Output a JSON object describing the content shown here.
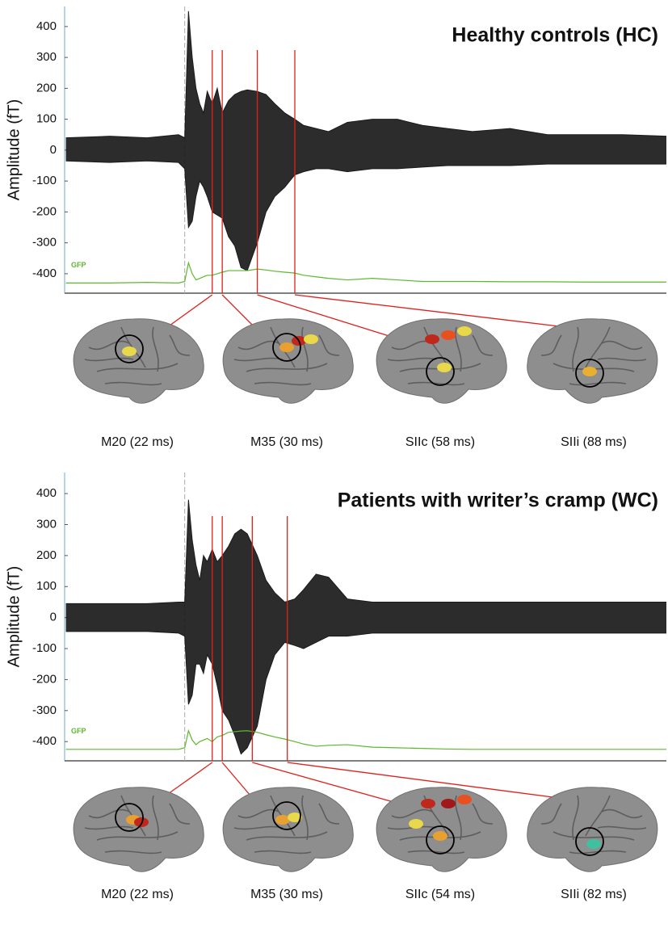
{
  "chart_data": [
    {
      "type": "line",
      "title": "Healthy controls (HC)",
      "y_label": "Amplitude (fT)",
      "x": [
        -95,
        -60,
        -30,
        -5,
        0,
        3,
        6,
        9,
        12,
        15,
        18,
        22,
        26,
        30,
        35,
        40,
        45,
        50,
        58,
        65,
        72,
        80,
        88,
        95,
        105,
        115,
        130,
        150,
        170,
        190,
        210,
        230,
        260,
        290,
        320,
        350,
        385
      ],
      "xlim": [
        -96,
        385
      ],
      "ylim": [
        -463,
        465
      ],
      "yticks": [
        -400,
        -300,
        -200,
        -100,
        0,
        100,
        200,
        300,
        400
      ],
      "series": [
        {
          "color": "#1a1a1a",
          "values": [
            40,
            45,
            40,
            50,
            40,
            450,
            300,
            200,
            150,
            120,
            190,
            150,
            200,
            120,
            160,
            180,
            190,
            195,
            190,
            180,
            150,
            120,
            100,
            80,
            70,
            60,
            90,
            100,
            100,
            80,
            70,
            60,
            70,
            50,
            50,
            50,
            45
          ]
        },
        {
          "color": "#1a1a1a",
          "values": [
            -35,
            -40,
            -35,
            -40,
            -60,
            -250,
            -230,
            -150,
            -100,
            -120,
            -150,
            -200,
            -210,
            -220,
            -280,
            -310,
            -380,
            -390,
            -300,
            -200,
            -150,
            -120,
            -80,
            -70,
            -60,
            -60,
            -70,
            -60,
            -60,
            -55,
            -50,
            -50,
            -50,
            -45,
            -45,
            -45,
            -45
          ]
        },
        {
          "name": "GFP",
          "color": "#5cb82e",
          "values": [
            -430,
            -430,
            -428,
            -430,
            -425,
            -365,
            -400,
            -420,
            -415,
            -410,
            -405,
            -405,
            -400,
            -395,
            -390,
            -390,
            -390,
            -390,
            -385,
            -388,
            -392,
            -395,
            -398,
            -405,
            -410,
            -415,
            -420,
            -415,
            -420,
            -425,
            -425,
            -425,
            -426,
            -426,
            -427,
            -427,
            -427
          ]
        }
      ],
      "markers": [
        {
          "label": "M20 (22 ms)",
          "x": 22
        },
        {
          "label": "M35 (30 ms)",
          "x": 30
        },
        {
          "label": "SIIc (58 ms)",
          "x": 58
        },
        {
          "label": "SIIi (88 ms)",
          "x": 88
        }
      ],
      "marker_color": "#e0201b"
    },
    {
      "type": "line",
      "title": "Patients with writer’s cramp (WC)",
      "y_label": "Amplitude (fT)",
      "x": [
        -95,
        -60,
        -30,
        -5,
        0,
        3,
        6,
        9,
        12,
        15,
        18,
        22,
        26,
        30,
        35,
        40,
        45,
        50,
        58,
        65,
        72,
        80,
        88,
        95,
        105,
        115,
        130,
        150,
        170,
        190,
        210,
        230,
        260,
        290,
        320,
        350,
        385
      ],
      "xlim": [
        -96,
        385
      ],
      "ylim": [
        -462,
        468
      ],
      "yticks": [
        -400,
        -300,
        -200,
        -100,
        0,
        100,
        200,
        300,
        400
      ],
      "series": [
        {
          "color": "#1a1a1a",
          "values": [
            45,
            45,
            45,
            50,
            50,
            380,
            250,
            170,
            120,
            200,
            180,
            220,
            180,
            200,
            230,
            270,
            285,
            270,
            200,
            120,
            80,
            50,
            60,
            90,
            140,
            130,
            60,
            50,
            50,
            50,
            50,
            50,
            50,
            50,
            50,
            50,
            50
          ]
        },
        {
          "color": "#1a1a1a",
          "values": [
            -45,
            -45,
            -45,
            -50,
            -60,
            -280,
            -250,
            -150,
            -150,
            -180,
            -120,
            -150,
            -220,
            -300,
            -330,
            -380,
            -440,
            -420,
            -350,
            -200,
            -120,
            -80,
            -90,
            -100,
            -80,
            -60,
            -60,
            -50,
            -50,
            -50,
            -50,
            -50,
            -50,
            -50,
            -50,
            -50,
            -50
          ]
        },
        {
          "name": "GFP",
          "color": "#5cb82e",
          "values": [
            -425,
            -425,
            -425,
            -425,
            -420,
            -365,
            -395,
            -410,
            -400,
            -395,
            -390,
            -400,
            -385,
            -380,
            -370,
            -368,
            -366,
            -365,
            -370,
            -378,
            -385,
            -392,
            -400,
            -408,
            -415,
            -412,
            -410,
            -418,
            -420,
            -422,
            -424,
            -425,
            -425,
            -425,
            -425,
            -425,
            -425
          ]
        }
      ],
      "markers": [
        {
          "label": "M20 (22 ms)",
          "x": 22
        },
        {
          "label": "M35 (30 ms)",
          "x": 30
        },
        {
          "label": "SIIc (54 ms)",
          "x": 54
        },
        {
          "label": "SIIi (82 ms)",
          "x": 82
        }
      ],
      "marker_color": "#e0201b"
    }
  ]
}
